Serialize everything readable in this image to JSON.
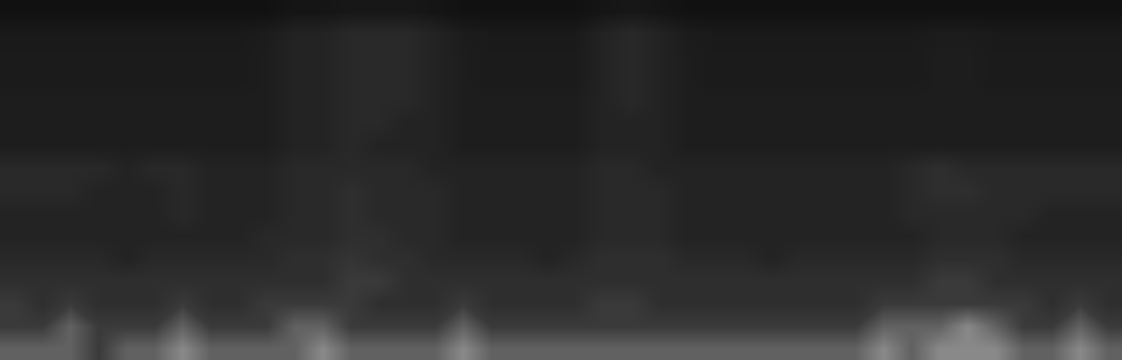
{
  "chart_data": {
    "type": "heatmap",
    "tick_labels": false,
    "grid": false,
    "xlim": [
      -0.5,
      39.5
    ],
    "ylim": [
      -0.5,
      15.5
    ],
    "zlim": [
      0,
      10
    ],
    "z": [
      [
        6,
        6,
        6,
        5,
        6,
        6,
        7,
        6,
        6,
        6,
        6,
        7,
        6,
        6,
        6,
        6,
        7,
        6,
        6,
        6,
        6,
        6,
        6,
        6,
        6,
        6,
        6,
        6,
        6,
        6,
        6,
        7,
        6,
        7,
        7,
        7,
        6,
        6,
        7,
        6
      ],
      [
        5,
        5,
        6,
        5,
        5,
        5,
        6,
        5,
        5,
        5,
        6,
        6,
        5,
        5,
        5,
        5,
        6,
        5,
        5,
        5,
        5,
        5,
        5,
        5,
        5,
        5,
        5,
        5,
        5,
        5,
        5,
        6,
        6,
        6,
        7,
        6,
        5,
        5,
        6,
        5
      ],
      [
        5,
        4,
        5,
        4,
        4,
        4,
        5,
        4,
        4,
        5,
        5,
        5,
        5,
        4,
        4,
        4,
        5,
        4,
        4,
        4,
        4,
        5,
        5,
        4,
        4,
        4,
        4,
        4,
        4,
        4,
        4,
        5,
        5,
        5,
        5,
        5,
        5,
        4,
        5,
        4
      ],
      [
        4,
        4,
        4,
        4,
        4,
        4,
        4,
        4,
        4,
        4,
        4,
        4,
        5,
        5,
        4,
        4,
        4,
        4,
        4,
        4,
        4,
        4,
        4,
        4,
        4,
        4,
        4,
        4,
        4,
        4,
        4,
        4,
        4,
        5,
        5,
        4,
        4,
        4,
        4,
        4
      ],
      [
        3.5,
        3.5,
        3.5,
        3.5,
        3,
        3.5,
        3.5,
        3.5,
        3.5,
        3.5,
        4,
        4,
        4.5,
        4,
        4,
        3.5,
        3.5,
        3.5,
        3.5,
        3,
        3.5,
        4,
        4,
        4,
        3.5,
        3.5,
        3.5,
        3,
        3.5,
        3.5,
        3.5,
        3.5,
        3.5,
        4,
        4,
        4,
        3.5,
        3.5,
        3.5,
        3.5
      ],
      [
        3,
        3,
        3,
        3,
        3,
        3,
        3,
        3,
        3,
        3.5,
        3.5,
        3.5,
        4,
        4,
        3.5,
        3.5,
        3,
        3,
        3,
        3,
        3,
        3.5,
        3.5,
        3.5,
        3,
        3,
        3,
        3,
        3,
        3,
        3,
        3,
        3,
        3.5,
        3.5,
        3.5,
        3,
        3,
        3,
        3
      ],
      [
        3,
        3,
        3,
        3,
        3,
        3,
        3.5,
        3,
        3,
        3,
        3.5,
        3.5,
        4,
        3.5,
        3.5,
        3.5,
        3,
        3,
        3,
        3,
        3,
        3.5,
        3.5,
        3.5,
        3,
        3,
        3,
        3,
        3,
        3,
        3,
        3,
        3.5,
        3.5,
        3.5,
        3.5,
        3.5,
        3,
        3,
        3
      ],
      [
        3.5,
        3.5,
        3.5,
        3,
        3,
        3,
        3.5,
        3,
        3,
        3,
        3.5,
        3.5,
        4,
        3.5,
        3.5,
        3.5,
        3,
        3,
        3,
        3,
        3,
        3.5,
        3.5,
        3.5,
        3,
        3,
        3,
        3,
        3,
        3,
        3,
        3,
        3.5,
        4,
        4,
        3.5,
        3.5,
        3.5,
        3.5,
        3.5
      ],
      [
        3.5,
        3.5,
        3.5,
        3.5,
        3,
        3.5,
        3.5,
        3,
        3,
        3,
        3.5,
        3.5,
        3.5,
        3.5,
        3.5,
        3,
        3,
        3,
        3,
        3,
        3,
        3.5,
        3.5,
        3,
        3,
        3,
        3,
        3,
        3,
        3,
        3,
        3,
        3.5,
        4,
        3.5,
        3.5,
        3.5,
        3.5,
        3.5,
        3.5
      ],
      [
        2.5,
        2.5,
        2.5,
        2.5,
        2.5,
        2.5,
        2.5,
        2.5,
        2.5,
        2.5,
        3,
        3,
        3.5,
        3,
        3,
        3,
        2.5,
        2.5,
        2.5,
        2.5,
        2.5,
        3,
        3,
        3,
        2.5,
        2.5,
        2.5,
        2.5,
        2.5,
        2.5,
        2.5,
        2.5,
        2.5,
        2.5,
        2.5,
        2.5,
        2.5,
        2.5,
        2.5,
        2.5
      ],
      [
        2.5,
        2.5,
        2.5,
        2.5,
        2.5,
        2.5,
        2.5,
        2.5,
        2.5,
        2.5,
        3,
        3,
        3.5,
        3.5,
        3,
        3,
        2.5,
        2.5,
        2.5,
        2.5,
        2.5,
        3,
        3,
        3,
        2.5,
        2.5,
        2.5,
        2.5,
        2.5,
        2.5,
        2.5,
        2.5,
        2.5,
        2.5,
        2.5,
        2.5,
        2.5,
        2.5,
        2.5,
        2.5
      ],
      [
        2.5,
        2.5,
        2.5,
        2.5,
        2.5,
        2.5,
        2.5,
        2.5,
        2.5,
        2.5,
        3,
        3,
        3.5,
        3.5,
        3.5,
        3,
        2.5,
        2.5,
        2.5,
        2.5,
        2.5,
        3,
        3.5,
        3,
        2.5,
        2.5,
        2.5,
        2.5,
        2.5,
        2.5,
        2.5,
        2.5,
        2.5,
        2.5,
        2.5,
        2.5,
        2.5,
        2.5,
        2.5,
        2.5
      ],
      [
        2.3,
        2.3,
        2.3,
        2.3,
        2.3,
        2.3,
        2.3,
        2.3,
        2.3,
        2.5,
        3,
        3,
        3.5,
        3.5,
        3.5,
        3,
        2.5,
        2.3,
        2.3,
        2.3,
        2.3,
        3,
        3.5,
        3,
        2.5,
        2.3,
        2.3,
        2.3,
        2.3,
        2.3,
        2.3,
        2.3,
        2.3,
        2.5,
        2.5,
        2.3,
        2.3,
        2.3,
        2.3,
        2.3
      ],
      [
        2.3,
        2.3,
        2.3,
        2.3,
        2.3,
        2.3,
        2.3,
        2.3,
        2.3,
        2.5,
        3,
        3,
        3.5,
        3.5,
        3.5,
        3,
        2.5,
        2.3,
        2.3,
        2.3,
        2.3,
        3,
        3.5,
        3,
        2.5,
        2.3,
        2.3,
        2.3,
        2.3,
        2.3,
        2.3,
        2.3,
        2.3,
        2.5,
        2.5,
        2.3,
        2.3,
        2.3,
        2.3,
        2.3
      ],
      [
        2.2,
        2.2,
        2.2,
        2.2,
        2.2,
        2.2,
        2.2,
        2.2,
        2.2,
        2.4,
        3,
        3,
        3.5,
        3.5,
        3.5,
        3,
        2.4,
        2.2,
        2.2,
        2.2,
        2.2,
        3,
        3.5,
        3,
        2.4,
        2.2,
        2.2,
        2.2,
        2.2,
        2.2,
        2.2,
        2.2,
        2.2,
        2.4,
        2.4,
        2.2,
        2.2,
        2.2,
        2.2,
        2.2
      ],
      [
        1.5,
        1.5,
        1.5,
        1.5,
        1.5,
        1.5,
        1.5,
        1.5,
        1.5,
        1.5,
        1.8,
        1.8,
        2,
        2,
        2,
        1.8,
        1.5,
        1.5,
        1.5,
        1.5,
        1.5,
        1.8,
        2,
        1.8,
        1.5,
        1.5,
        1.5,
        1.5,
        1.5,
        1.5,
        1.5,
        1.5,
        1.5,
        1.5,
        1.5,
        1.5,
        1.5,
        1.5,
        1.5,
        1.5
      ]
    ]
  }
}
